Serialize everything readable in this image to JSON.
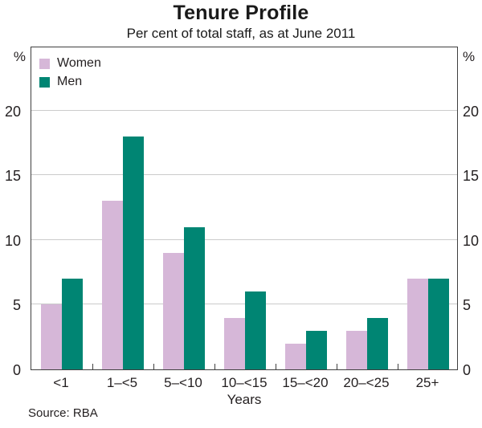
{
  "header": {
    "title": "Tenure Profile",
    "subtitle": "Per cent of total staff, as at June 2011"
  },
  "chart_data": {
    "type": "bar",
    "title": "Tenure Profile",
    "subtitle": "Per cent of total staff, as at June 2011",
    "categories": [
      "<1",
      "1–<5",
      "5–<10",
      "10–<15",
      "15–<20",
      "20–<25",
      "25+"
    ],
    "series": [
      {
        "name": "Women",
        "color": "#d6b7d8",
        "values": [
          5,
          13,
          9,
          4,
          2,
          3,
          7
        ]
      },
      {
        "name": "Men",
        "color": "#008573",
        "values": [
          7,
          18,
          11,
          6,
          3,
          4,
          7
        ]
      }
    ],
    "xlabel": "Years",
    "ylabel_left": "%",
    "ylabel_right": "%",
    "ylim": [
      0,
      25
    ],
    "yticks": [
      0,
      5,
      10,
      15,
      20
    ],
    "grid": true,
    "legend_position": "top-left-inside"
  },
  "footer": {
    "source": "Source: RBA"
  },
  "colors": {
    "grid": "#cbcbcb",
    "axis": "#3f3f3f",
    "text": "#231f20"
  }
}
